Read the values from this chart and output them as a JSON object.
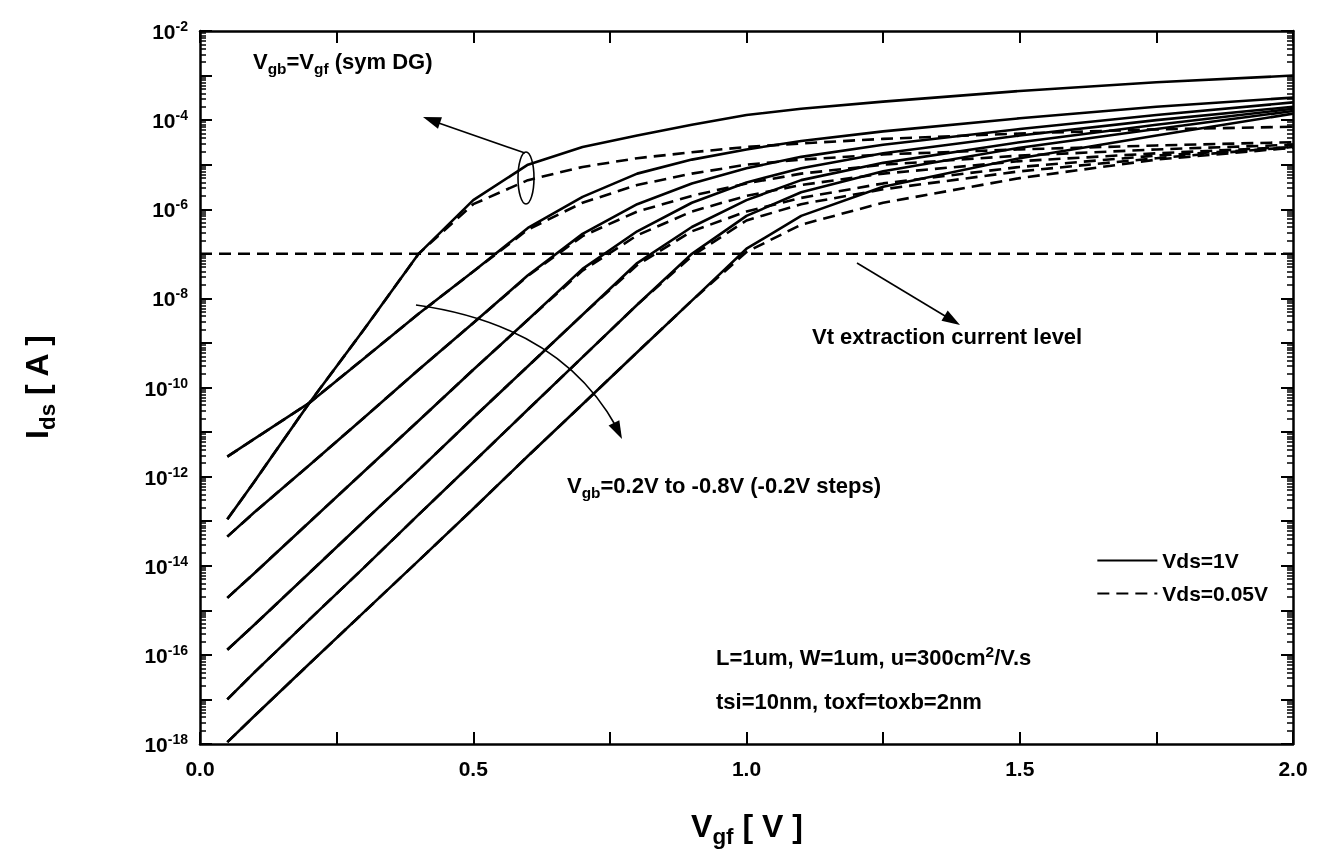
{
  "chart_data": {
    "type": "line",
    "xlabel": "V$_{gf}$ [ V ]",
    "ylabel": "I$_{ds}$ [ A ]",
    "annotations": [
      "V$_{gb}$=V$_{gf}$ (sym DG)",
      "Vt extraction current level",
      "V$_{gb}$=0.2V to -0.8V (-0.2V steps)",
      "L=1um, W=1um, u=300cm$^{2}$/V.s",
      "tsi=10nm, toxf=toxb=2nm"
    ],
    "x": [
      0.05,
      0.1,
      0.2,
      0.3,
      0.4,
      0.5,
      0.6,
      0.7,
      0.8,
      0.9,
      1.0,
      1.1,
      1.25,
      1.5,
      1.75,
      2.0
    ],
    "series": [
      {
        "name": "Vds=1V",
        "color": "#000000",
        "line_style": "solid",
        "values": [
          1.1e-13,
          7.9e-13,
          4.5e-11,
          2e-09,
          1e-07,
          1.6e-06,
          1e-05,
          2.5e-05,
          4.5e-05,
          7.9e-05,
          0.00013,
          0.00018,
          0.00026,
          0.00045,
          0.00071,
          0.001
        ]
      },
      {
        "name": "Vds=0.05V",
        "color": "#000000",
        "line_style": "dashed",
        "values": [
          1.1e-13,
          7.9e-13,
          4.5e-11,
          2e-09,
          1e-07,
          1.3e-06,
          4.5e-06,
          8.9e-06,
          1.4e-05,
          1.9e-05,
          2.5e-05,
          3e-05,
          3.8e-05,
          5e-05,
          6.2e-05,
          7.1e-05
        ]
      },
      {
        "color": "#000000",
        "line_style": "solid",
        "values": [
          2.8e-12,
          7.1e-12,
          4.5e-11,
          4.5e-10,
          4.5e-09,
          4e-08,
          3.8e-07,
          1.9e-06,
          6.3e-06,
          1.3e-05,
          2.2e-05,
          3.4e-05,
          5.6e-05,
          0.00011,
          0.0002,
          0.00032
        ]
      },
      {
        "color": "#000000",
        "line_style": "dashed",
        "values": [
          2.8e-12,
          7.1e-12,
          4.5e-11,
          4.5e-10,
          4.5e-09,
          4e-08,
          3.5e-07,
          1.4e-06,
          3.5e-06,
          6.3e-06,
          1e-05,
          1.3e-05,
          1.7e-05,
          2.2e-05,
          2.7e-05,
          3.2e-05
        ]
      },
      {
        "color": "#000000",
        "line_style": "solid",
        "values": [
          4.5e-14,
          1.6e-13,
          1.8e-12,
          2.1e-11,
          2.5e-10,
          2.8e-09,
          3.3e-08,
          2.8e-07,
          1.3e-06,
          3.8e-06,
          8.3e-06,
          1.5e-05,
          2.8e-05,
          6.3e-05,
          0.00013,
          0.00025
        ]
      },
      {
        "color": "#000000",
        "line_style": "dashed",
        "values": [
          4.5e-14,
          1.6e-13,
          1.8e-12,
          2.1e-11,
          2.5e-10,
          2.8e-09,
          3.2e-08,
          2.5e-07,
          8.9e-07,
          2e-06,
          3.8e-06,
          6.3e-06,
          1e-05,
          1.6e-05,
          2.2e-05,
          2.8e-05
        ]
      },
      {
        "color": "#000000",
        "line_style": "solid",
        "values": [
          1.9e-15,
          6.9e-15,
          9.5e-14,
          1.3e-12,
          1.8e-11,
          2.5e-10,
          3.3e-09,
          4.6e-08,
          3.2e-07,
          1.4e-06,
          4e-06,
          8.3e-06,
          1.8e-05,
          4.5e-05,
          0.0001,
          0.0002
        ]
      },
      {
        "color": "#000000",
        "line_style": "dashed",
        "values": [
          1.9e-15,
          6.9e-15,
          9.5e-14,
          1.3e-12,
          1.8e-11,
          2.5e-10,
          3.3e-09,
          4.2e-08,
          2.6e-07,
          8.9e-07,
          2e-06,
          3.5e-06,
          6.3e-06,
          1.2e-05,
          1.8e-05,
          2.5e-05
        ]
      },
      {
        "color": "#000000",
        "line_style": "solid",
        "values": [
          1.3e-16,
          4.8e-16,
          6.9e-15,
          1e-13,
          1.4e-12,
          2.1e-11,
          3e-10,
          4.3e-09,
          6.2e-08,
          4e-07,
          1.6e-06,
          4.5e-06,
          1.1e-05,
          3.2e-05,
          7.9e-05,
          0.00018
        ]
      },
      {
        "color": "#000000",
        "line_style": "dashed",
        "values": [
          1.3e-16,
          4.8e-16,
          6.9e-15,
          1e-13,
          1.4e-12,
          2.1e-11,
          3e-10,
          4.3e-09,
          5.6e-08,
          3.2e-07,
          8.9e-07,
          1.8e-06,
          3.8e-06,
          8.9e-06,
          1.6e-05,
          2.4e-05
        ]
      },
      {
        "color": "#000000",
        "line_style": "solid",
        "values": [
          1e-17,
          4.1e-17,
          6.2e-16,
          9.1e-15,
          1.4e-13,
          2.1e-12,
          3.2e-11,
          4.8e-10,
          7.2e-09,
          1e-07,
          7.1e-07,
          2.4e-06,
          7.1e-06,
          2.4e-05,
          6.3e-05,
          0.00016
        ]
      },
      {
        "color": "#000000",
        "line_style": "dashed",
        "values": [
          1e-17,
          4.1e-17,
          6.2e-16,
          9.1e-15,
          1.4e-13,
          2.1e-12,
          3.2e-11,
          4.8e-10,
          7.2e-09,
          8.9e-08,
          5.6e-07,
          1.3e-06,
          2.8e-06,
          7.1e-06,
          1.4e-05,
          2.5e-05
        ]
      },
      {
        "color": "#000000",
        "line_style": "solid",
        "values": [
          1.1e-18,
          4.3e-18,
          6.3e-17,
          9.1e-16,
          1.3e-14,
          1.9e-13,
          2.9e-12,
          4.2e-11,
          6.2e-10,
          8.9e-09,
          1.3e-07,
          7.1e-07,
          3.2e-06,
          1.4e-05,
          4.5e-05,
          0.00014
        ]
      },
      {
        "color": "#000000",
        "line_style": "dashed",
        "values": [
          1.1e-18,
          4.3e-18,
          6.3e-17,
          9.1e-16,
          1.3e-14,
          1.9e-13,
          2.9e-12,
          4.2e-11,
          6.2e-10,
          8.9e-09,
          1.1e-07,
          4.5e-07,
          1.4e-06,
          5e-06,
          1.3e-05,
          2.4e-05
        ]
      }
    ],
    "xlim": [
      0,
      2
    ],
    "xticks": [
      {
        "value": 0,
        "label": "0.0"
      },
      {
        "value": 0.25,
        "label": null
      },
      {
        "value": 0.5,
        "label": "0.5"
      },
      {
        "value": 0.75,
        "label": null
      },
      {
        "value": 1,
        "label": "1.0"
      },
      {
        "value": 1.25,
        "label": null
      },
      {
        "value": 1.5,
        "label": "1.5"
      },
      {
        "value": 1.75,
        "label": null
      },
      {
        "value": 2,
        "label": "2.0"
      }
    ],
    "ylim": [
      1e-18,
      0.01
    ],
    "yticks": [
      {
        "value": 1e-18,
        "label": "10$^{-18}$"
      },
      {
        "value": 1e-17,
        "label": null
      },
      {
        "value": 1e-16,
        "label": "10$^{-16}$"
      },
      {
        "value": 1e-15,
        "label": null
      },
      {
        "value": 1e-14,
        "label": "10$^{-14}$"
      },
      {
        "value": 1e-13,
        "label": null
      },
      {
        "value": 1e-12,
        "label": "10$^{-12}$"
      },
      {
        "value": 1e-11,
        "label": null
      },
      {
        "value": 1e-10,
        "label": "10$^{-10}$"
      },
      {
        "value": 1e-09,
        "label": null
      },
      {
        "value": 1e-08,
        "label": "10$^{-8}$"
      },
      {
        "value": 1e-07,
        "label": null
      },
      {
        "value": 1e-06,
        "label": "10$^{-6}$"
      },
      {
        "value": 1e-05,
        "label": null
      },
      {
        "value": 0.0001,
        "label": "10$^{-4}$"
      },
      {
        "value": 0.001,
        "label": null
      },
      {
        "value": 0.01,
        "label": "10$^{-2}$"
      }
    ],
    "log": "y",
    "marker": "none",
    "legend": "bottom right",
    "ref_lines": [
      {
        "axis": "y",
        "value": 1e-07,
        "color": "#000000",
        "line_style": "dashed"
      }
    ]
  }
}
